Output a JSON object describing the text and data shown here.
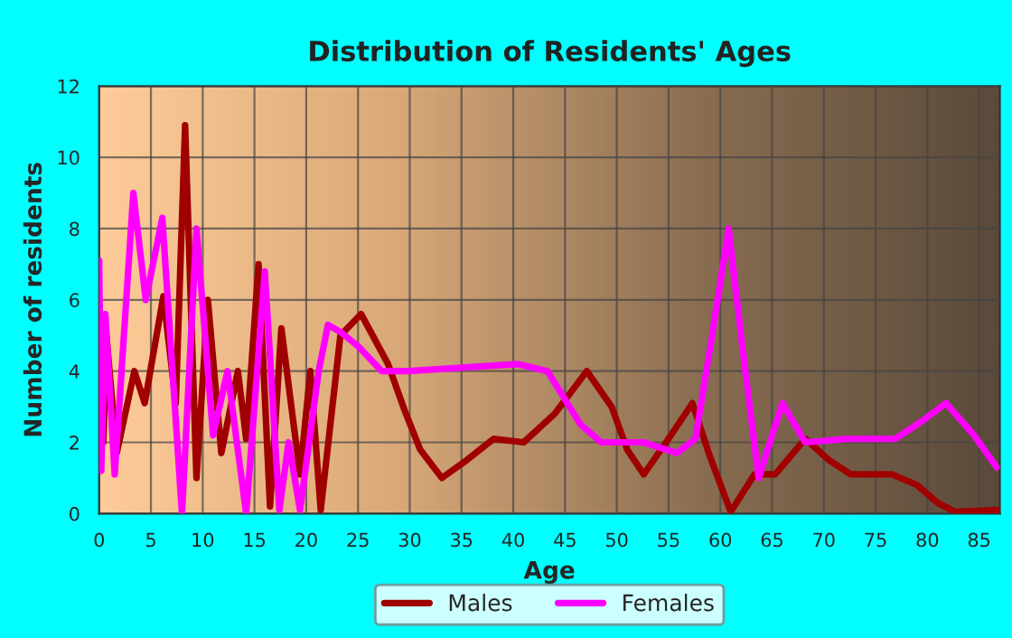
{
  "chart_data": {
    "type": "line",
    "title": "Distribution of Residents' Ages",
    "xlabel": "Age",
    "ylabel": "Number of residents",
    "xlim": [
      0,
      87
    ],
    "xticks": [
      0,
      5,
      10,
      15,
      20,
      25,
      30,
      35,
      40,
      45,
      50,
      55,
      60,
      65,
      70,
      75,
      80,
      85
    ],
    "ylim": [
      0,
      12
    ],
    "yticks": [
      0,
      2,
      4,
      6,
      8,
      10,
      12
    ],
    "grid": true,
    "legend": "bottom",
    "marker": "none",
    "line_style": "solid",
    "series": [
      {
        "name": "Males",
        "color": "#a00000",
        "x": [
          0,
          0.4,
          0.7,
          1.7,
          3.4,
          4.4,
          6.2,
          7.4,
          8.3,
          9.4,
          10.5,
          11.8,
          13.4,
          14.2,
          15.4,
          16.5,
          17.6,
          19.4,
          20.4,
          21.4,
          23.3,
          25.3,
          27.9,
          29.5,
          31,
          33.1,
          35.5,
          38.1,
          41,
          44,
          47.1,
          49.5,
          51,
          52.6,
          55,
          57.3,
          59,
          61,
          63.3,
          65.3,
          68.2,
          70.5,
          72.6,
          76.6,
          79,
          81,
          82.7,
          86.7
        ],
        "values": [
          6,
          2,
          5,
          1.7,
          4,
          3.1,
          6.1,
          3.1,
          10.9,
          1,
          6,
          1.7,
          4,
          2.1,
          7,
          0.2,
          5.2,
          1.1,
          4,
          0.1,
          5,
          5.6,
          4.2,
          2.9,
          1.8,
          1,
          1.5,
          2.1,
          2,
          2.8,
          4,
          3,
          1.8,
          1.1,
          2.1,
          3.1,
          1.6,
          0.05,
          1.1,
          1.1,
          2.1,
          1.5,
          1.1,
          1.1,
          0.8,
          0.3,
          0.05,
          0.1
        ]
      },
      {
        "name": "Females",
        "color": "#ff00ff",
        "x": [
          0,
          0.2,
          0.6,
          1.5,
          3.3,
          4.5,
          6.1,
          8.0,
          9.4,
          11,
          12.4,
          14.2,
          16,
          17.4,
          18.3,
          19.4,
          21.2,
          22.1,
          23.3,
          25,
          27.3,
          29.9,
          35.2,
          40.4,
          43.3,
          45,
          46.5,
          48.5,
          52.6,
          55.8,
          57.6,
          59.2,
          60.8,
          62.2,
          63.7,
          66,
          68.2,
          72.3,
          76.9,
          79.5,
          81.8,
          84.5,
          86.7
        ],
        "values": [
          7.1,
          1.2,
          5.6,
          1.1,
          9,
          6,
          8.3,
          0,
          8,
          2.2,
          4,
          0,
          6.8,
          0.1,
          2,
          0.1,
          4,
          5.3,
          5.1,
          4.7,
          4,
          4,
          4.1,
          4.2,
          4,
          3.2,
          2.5,
          2,
          2,
          1.7,
          2.1,
          5,
          8,
          4.5,
          1,
          3.1,
          2,
          2.1,
          2.1,
          2.6,
          3.1,
          2.2,
          1.3
        ]
      }
    ]
  }
}
